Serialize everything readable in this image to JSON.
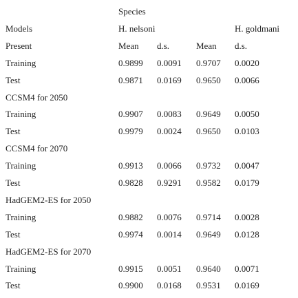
{
  "table": {
    "species": "Species",
    "models": "Models",
    "group_1": "H. nelsoni",
    "group_2": "H. goldmani",
    "first_section": "Present",
    "columns": [
      "Mean",
      "d.s.",
      "Mean",
      "d.s."
    ],
    "sections": [
      {
        "title": null,
        "rows": [
          {
            "label": "Training",
            "values": [
              "0.9899",
              "0.0091",
              "0.9707",
              "0.0020"
            ]
          },
          {
            "label": "Test",
            "values": [
              "0.9871",
              "0.0169",
              "0.9650",
              "0.0066"
            ]
          }
        ]
      },
      {
        "title": "CCSM4 for 2050",
        "rows": [
          {
            "label": "Training",
            "values": [
              "0.9907",
              "0.0083",
              "0.9649",
              "0.0050"
            ]
          },
          {
            "label": "Test",
            "values": [
              "0.9979",
              "0.0024",
              "0.9650",
              "0.0103"
            ]
          }
        ]
      },
      {
        "title": "CCSM4 for 2070",
        "rows": [
          {
            "label": "Training",
            "values": [
              "0.9913",
              "0.0066",
              "0.9732",
              "0.0047"
            ]
          },
          {
            "label": "Test",
            "values": [
              "0.9828",
              "0.9291",
              "0.9582",
              "0.0179"
            ]
          }
        ]
      },
      {
        "title": "HadGEM2-ES for 2050",
        "rows": [
          {
            "label": "Training",
            "values": [
              "0.9882",
              "0.0076",
              "0.9714",
              "0.0028"
            ]
          },
          {
            "label": "Test",
            "values": [
              "0.9974",
              "0.0014",
              "0.9649",
              "0.0128"
            ]
          }
        ]
      },
      {
        "title": "HadGEM2-ES for 2070",
        "rows": [
          {
            "label": "Training",
            "values": [
              "0.9915",
              "0.0051",
              "0.9640",
              "0.0071"
            ]
          },
          {
            "label": "Test",
            "values": [
              "0.9900",
              "0.0168",
              "0.9531",
              "0.0169"
            ]
          }
        ]
      }
    ]
  }
}
